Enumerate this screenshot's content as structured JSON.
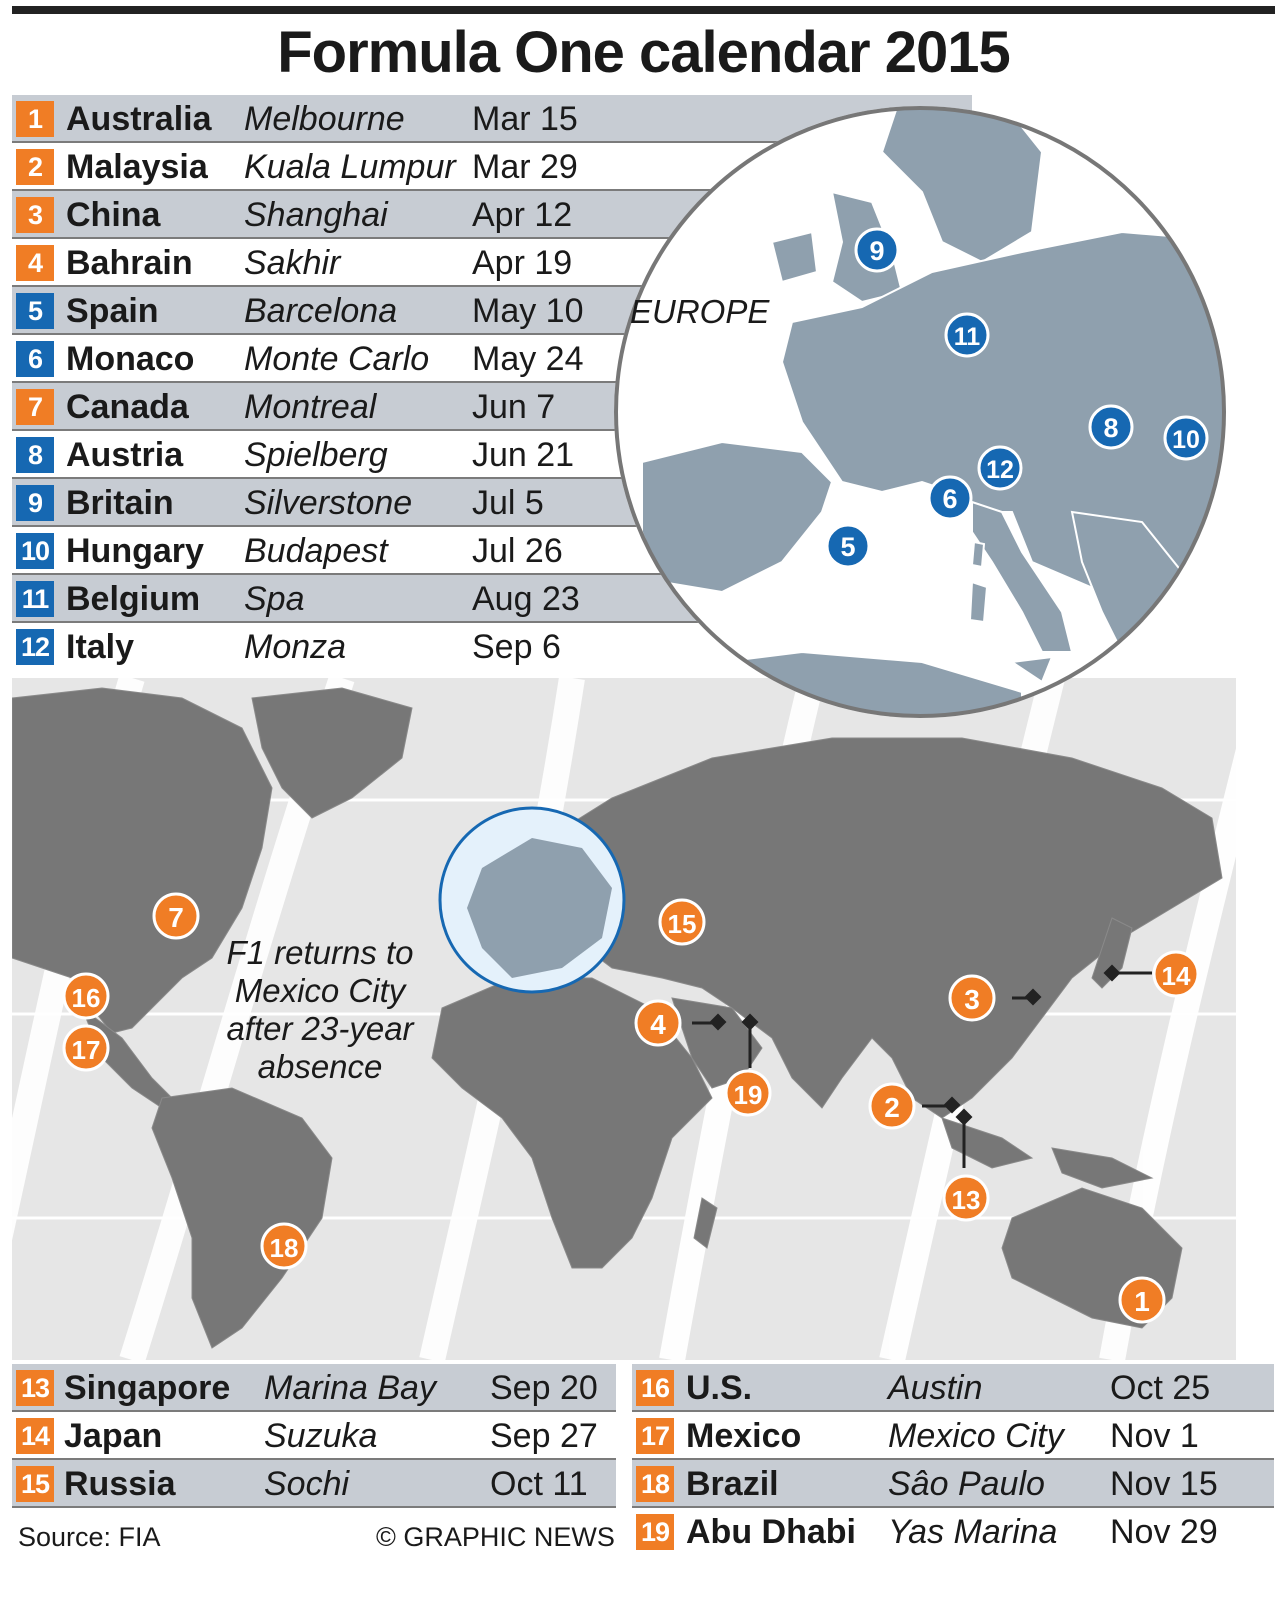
{
  "title": "Formula One calendar 2015",
  "colors": {
    "orange": "#f07d25",
    "blue": "#1668b2",
    "land_world": "#777777",
    "land_europe": "#8fa0ae",
    "row_shade": "#c7ccd3"
  },
  "races_top": [
    {
      "num": "1",
      "country": "Australia",
      "city": "Melbourne",
      "date": "Mar 15",
      "color": "orange"
    },
    {
      "num": "2",
      "country": "Malaysia",
      "city": "Kuala Lumpur",
      "date": "Mar 29",
      "color": "orange"
    },
    {
      "num": "3",
      "country": "China",
      "city": "Shanghai",
      "date": "Apr 12",
      "color": "orange"
    },
    {
      "num": "4",
      "country": "Bahrain",
      "city": "Sakhir",
      "date": "Apr 19",
      "color": "orange"
    },
    {
      "num": "5",
      "country": "Spain",
      "city": "Barcelona",
      "date": "May 10",
      "color": "blue"
    },
    {
      "num": "6",
      "country": "Monaco",
      "city": "Monte Carlo",
      "date": "May 24",
      "color": "blue"
    },
    {
      "num": "7",
      "country": "Canada",
      "city": "Montreal",
      "date": "Jun 7",
      "color": "orange"
    },
    {
      "num": "8",
      "country": "Austria",
      "city": "Spielberg",
      "date": "Jun 21",
      "color": "blue"
    },
    {
      "num": "9",
      "country": "Britain",
      "city": "Silverstone",
      "date": "Jul 5",
      "color": "blue"
    },
    {
      "num": "10",
      "country": "Hungary",
      "city": "Budapest",
      "date": "Jul 26",
      "color": "blue"
    },
    {
      "num": "11",
      "country": "Belgium",
      "city": "Spa",
      "date": "Aug 23",
      "color": "blue"
    },
    {
      "num": "12",
      "country": "Italy",
      "city": "Monza",
      "date": "Sep 6",
      "color": "blue"
    }
  ],
  "races_bottom_left": [
    {
      "num": "13",
      "country": "Singapore",
      "city": "Marina Bay",
      "date": "Sep 20",
      "color": "orange"
    },
    {
      "num": "14",
      "country": "Japan",
      "city": "Suzuka",
      "date": "Sep 27",
      "color": "orange"
    },
    {
      "num": "15",
      "country": "Russia",
      "city": "Sochi",
      "date": "Oct 11",
      "color": "orange"
    }
  ],
  "races_bottom_right": [
    {
      "num": "16",
      "country": "U.S.",
      "city": "Austin",
      "date": "Oct 25",
      "color": "orange"
    },
    {
      "num": "17",
      "country": "Mexico",
      "city": "Mexico City",
      "date": "Nov 1",
      "color": "orange"
    },
    {
      "num": "18",
      "country": "Brazil",
      "city": "Sâo Paulo",
      "date": "Nov 15",
      "color": "orange"
    },
    {
      "num": "19",
      "country": "Abu Dhabi",
      "city": "Yas Marina",
      "date": "Nov 29",
      "color": "orange"
    }
  ],
  "europe_label": "EUROPE",
  "annotation": "F1 returns to Mexico City after 23-year absence",
  "source": "Source: FIA",
  "credit": "© GRAPHIC NEWS",
  "world_pins": [
    "7",
    "16",
    "17",
    "15",
    "4",
    "19",
    "3",
    "14",
    "2",
    "13",
    "18",
    "1"
  ],
  "europe_pins": [
    "9",
    "11",
    "8",
    "10",
    "12",
    "6",
    "5"
  ]
}
